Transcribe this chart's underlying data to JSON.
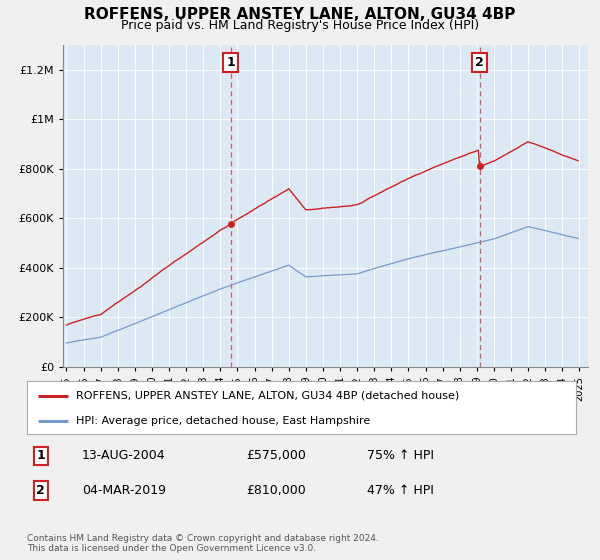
{
  "title": "ROFFENS, UPPER ANSTEY LANE, ALTON, GU34 4BP",
  "subtitle": "Price paid vs. HM Land Registry's House Price Index (HPI)",
  "legend_line1": "ROFFENS, UPPER ANSTEY LANE, ALTON, GU34 4BP (detached house)",
  "legend_line2": "HPI: Average price, detached house, East Hampshire",
  "transaction1_date": "13-AUG-2004",
  "transaction1_price": "£575,000",
  "transaction1_hpi": "75% ↑ HPI",
  "transaction1_year": 2004.62,
  "transaction1_value": 575000,
  "transaction2_date": "04-MAR-2019",
  "transaction2_price": "£810,000",
  "transaction2_hpi": "47% ↑ HPI",
  "transaction2_year": 2019.17,
  "transaction2_value": 810000,
  "footer": "Contains HM Land Registry data © Crown copyright and database right 2024.\nThis data is licensed under the Open Government Licence v3.0.",
  "red_color": "#cc2222",
  "blue_color": "#7799cc",
  "plot_bg_color": "#dce9f5",
  "fig_bg_color": "#f0f0f0",
  "grid_color": "#ffffff",
  "dashed_color": "#cc4444",
  "ylim_max": 1300000,
  "xlim_start": 1994.8,
  "xlim_end": 2025.5
}
